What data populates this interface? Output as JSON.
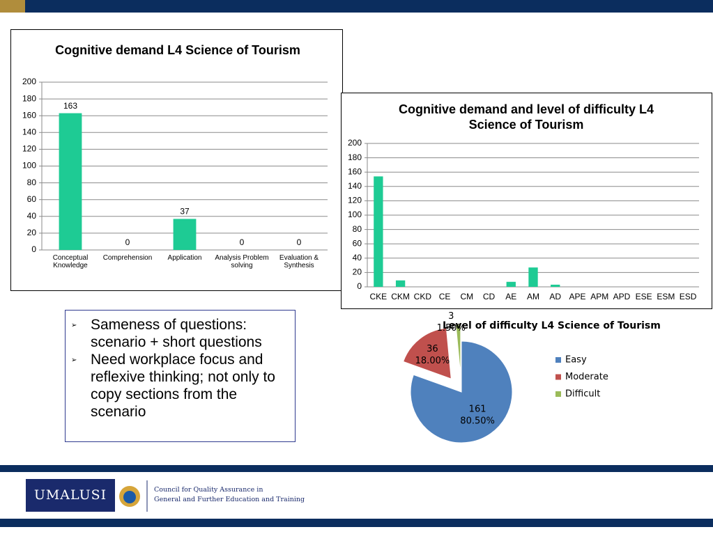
{
  "chart_data": [
    {
      "type": "bar",
      "title": "Cognitive demand L4 Science of Tourism",
      "categories": [
        "Conceptual Knowledge",
        "Comprehension",
        "Application",
        "Analysis Problem solving",
        "Evaluation & Synthesis"
      ],
      "values": [
        163,
        0,
        37,
        0,
        0
      ],
      "color": "#1ecb94",
      "ylim": [
        0,
        200
      ],
      "yticks": [
        0,
        20,
        40,
        60,
        80,
        100,
        120,
        140,
        160,
        180,
        200
      ],
      "grid": true,
      "value_labels_shown": true
    },
    {
      "type": "bar",
      "title": "Cognitive demand and level of difficulty L4 Science of Tourism",
      "categories": [
        "CKE",
        "CKM",
        "CKD",
        "CE",
        "CM",
        "CD",
        "AE",
        "AM",
        "AD",
        "APE",
        "APM",
        "APD",
        "ESE",
        "ESM",
        "ESD"
      ],
      "values": [
        154,
        9,
        0,
        0,
        0,
        0,
        7,
        27,
        3,
        0,
        0,
        0,
        0,
        0,
        0
      ],
      "color": "#1ecb94",
      "ylim": [
        0,
        200
      ],
      "yticks": [
        0,
        20,
        40,
        60,
        80,
        100,
        120,
        140,
        160,
        180,
        200
      ],
      "grid": true,
      "value_labels_shown": false
    },
    {
      "type": "pie",
      "title": "Level of difficulty L4 Science of Tourism",
      "categories": [
        "Easy",
        "Moderate",
        "Difficult"
      ],
      "values": [
        161,
        36,
        3
      ],
      "percentages": [
        80.5,
        18,
        1.5
      ],
      "percentage_labels": [
        "80.50%",
        "18.00%",
        "1.50%"
      ],
      "colors": [
        "#4f81bd",
        "#c0504d",
        "#9bbb59"
      ],
      "legend": "right"
    }
  ],
  "slide": {
    "bullets": [
      "Sameness of questions: scenario + short questions",
      "Need workplace focus and reflexive thinking; not only to copy sections from the scenario"
    ]
  },
  "footer": {
    "logo_text": "UMALUSI",
    "tagline": [
      "Council for Quality Assurance in",
      "General and Further Education and Training"
    ]
  }
}
